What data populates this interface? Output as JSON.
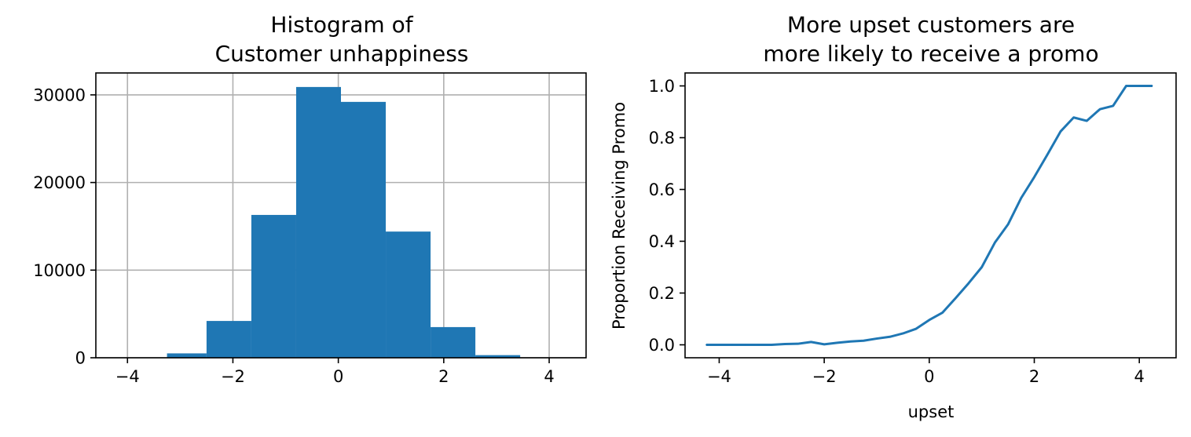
{
  "colors": {
    "bar": "#1f77b4",
    "line": "#1f77b4",
    "grid": "#b0b0b0",
    "axis": "#000000"
  },
  "chart_data": [
    {
      "type": "bar",
      "title_lines": [
        "Histogram of",
        "Customer unhappiness"
      ],
      "xlabel": "",
      "ylabel": "",
      "grid": true,
      "xlim": [
        -4.6,
        4.7
      ],
      "ylim": [
        0,
        32500
      ],
      "xticks": [
        -4,
        -2,
        0,
        2,
        4
      ],
      "xtick_labels": [
        "−4",
        "−2",
        "0",
        "2",
        "4"
      ],
      "yticks": [
        0,
        10000,
        20000,
        30000
      ],
      "ytick_labels": [
        "0",
        "10000",
        "20000",
        "30000"
      ],
      "bin_edges": [
        -4.1,
        -3.25,
        -2.5,
        -1.65,
        -0.8,
        0.05,
        0.9,
        1.75,
        2.6,
        3.45,
        4.3
      ],
      "values": [
        10,
        500,
        4200,
        16300,
        30900,
        29200,
        14400,
        3500,
        300,
        10
      ]
    },
    {
      "type": "line",
      "title_lines": [
        "More upset customers are",
        "more likely to receive a promo"
      ],
      "xlabel": "upset",
      "ylabel": "Proportion Receiving Promo",
      "grid": false,
      "xlim": [
        -4.65,
        4.7
      ],
      "ylim": [
        -0.05,
        1.05
      ],
      "xticks": [
        -4,
        -2,
        0,
        2,
        4
      ],
      "xtick_labels": [
        "−4",
        "−2",
        "0",
        "2",
        "4"
      ],
      "yticks": [
        0.0,
        0.2,
        0.4,
        0.6,
        0.8,
        1.0
      ],
      "ytick_labels": [
        "0.0",
        "0.2",
        "0.4",
        "0.6",
        "0.8",
        "1.0"
      ],
      "x": [
        -4.25,
        -4.0,
        -3.75,
        -3.5,
        -3.25,
        -3.0,
        -2.75,
        -2.5,
        -2.25,
        -2.0,
        -1.75,
        -1.5,
        -1.25,
        -1.0,
        -0.75,
        -0.5,
        -0.25,
        0.0,
        0.25,
        0.5,
        0.75,
        1.0,
        1.25,
        1.5,
        1.75,
        2.0,
        2.25,
        2.5,
        2.75,
        3.0,
        3.25,
        3.5,
        3.75,
        4.0,
        4.25
      ],
      "y": [
        0.0,
        0.0,
        0.0,
        0.0,
        0.0,
        0.0,
        0.003,
        0.004,
        0.011,
        0.002,
        0.008,
        0.013,
        0.016,
        0.024,
        0.031,
        0.044,
        0.062,
        0.096,
        0.124,
        0.18,
        0.238,
        0.3,
        0.395,
        0.465,
        0.567,
        0.648,
        0.735,
        0.824,
        0.878,
        0.865,
        0.91,
        0.923,
        1.0,
        1.0,
        1.0
      ]
    }
  ]
}
